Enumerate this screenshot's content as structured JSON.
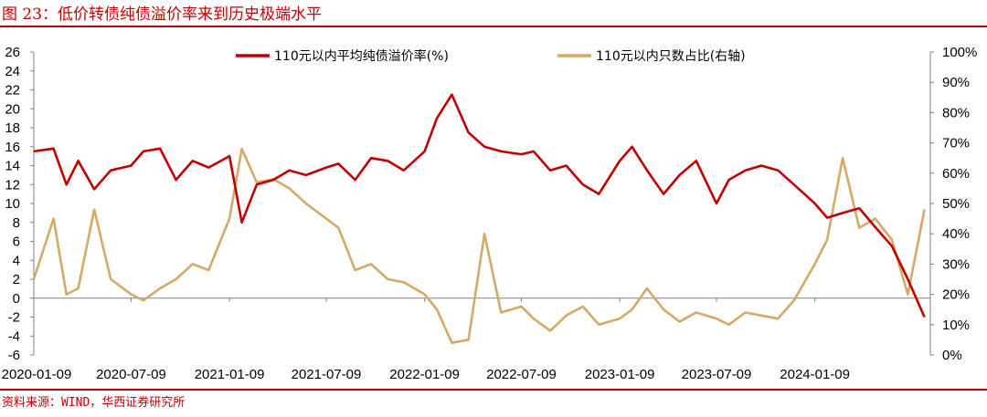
{
  "figure_title": "图 23：低价转债纯债溢价率来到历史极端水平",
  "source_note": "资料来源：WIND，华西证券研究所",
  "colors": {
    "accent": "#c00000",
    "series_left": "#c00000",
    "series_right": "#d4aa66"
  },
  "chart_data": {
    "type": "line",
    "title": "",
    "x_ticks": [
      "2020-01-09",
      "2020-07-09",
      "2021-01-09",
      "2021-07-09",
      "2022-01-09",
      "2022-07-09",
      "2023-01-09",
      "2023-07-09",
      "2024-01-09"
    ],
    "y_left_ticks": [
      "26",
      "24",
      "22",
      "20",
      "18",
      "16",
      "14",
      "12",
      "10",
      "8",
      "6",
      "4",
      "2",
      "0",
      "-2",
      "-4",
      "-6"
    ],
    "y_right_ticks": [
      "100%",
      "90%",
      "80%",
      "70%",
      "60%",
      "50%",
      "40%",
      "30%",
      "20%",
      "10%",
      "0%"
    ],
    "ylim_left": [
      -6,
      26
    ],
    "ylim_right": [
      0,
      100
    ],
    "legend_position": "top",
    "grid": false,
    "series": [
      {
        "name": "110元以内平均纯债溢价率(%)",
        "axis": "left",
        "x": [
          "2020-01-09",
          "2020-02-15",
          "2020-03-10",
          "2020-04-01",
          "2020-05-01",
          "2020-06-01",
          "2020-07-09",
          "2020-08-01",
          "2020-09-01",
          "2020-10-01",
          "2020-11-01",
          "2020-12-01",
          "2021-01-09",
          "2021-02-01",
          "2021-03-01",
          "2021-04-01",
          "2021-05-01",
          "2021-06-01",
          "2021-07-09",
          "2021-08-01",
          "2021-09-01",
          "2021-10-01",
          "2021-11-01",
          "2021-12-01",
          "2022-01-09",
          "2022-02-01",
          "2022-03-01",
          "2022-04-01",
          "2022-05-01",
          "2022-06-01",
          "2022-07-09",
          "2022-08-01",
          "2022-09-01",
          "2022-10-01",
          "2022-11-01",
          "2022-12-01",
          "2023-01-09",
          "2023-02-01",
          "2023-03-01",
          "2023-04-01",
          "2023-05-01",
          "2023-06-01",
          "2023-07-09",
          "2023-08-01",
          "2023-09-01",
          "2023-10-01",
          "2023-11-01",
          "2023-12-01",
          "2024-01-09",
          "2024-02-01",
          "2024-03-01",
          "2024-04-01",
          "2024-05-01",
          "2024-06-01",
          "2024-07-01",
          "2024-08-01"
        ],
        "values": [
          15.5,
          15.8,
          12.0,
          14.5,
          11.5,
          13.5,
          14.0,
          15.5,
          15.8,
          12.5,
          14.5,
          13.8,
          15.0,
          8.0,
          12.0,
          12.5,
          13.5,
          13.0,
          13.8,
          14.2,
          12.5,
          14.8,
          14.5,
          13.5,
          15.5,
          19.0,
          21.5,
          17.5,
          16.0,
          15.5,
          15.2,
          15.5,
          13.5,
          14.0,
          12.0,
          11.0,
          14.5,
          16.0,
          13.5,
          11.0,
          13.0,
          14.5,
          10.0,
          12.5,
          13.5,
          14.0,
          13.5,
          12.0,
          10.0,
          8.5,
          9.0,
          9.5,
          7.5,
          5.5,
          2.0,
          -2.0
        ]
      },
      {
        "name": "110元以内只数占比(右轴)",
        "axis": "right",
        "x": [
          "2020-01-09",
          "2020-02-15",
          "2020-03-10",
          "2020-04-01",
          "2020-05-01",
          "2020-06-01",
          "2020-07-09",
          "2020-08-01",
          "2020-09-01",
          "2020-10-01",
          "2020-11-01",
          "2020-12-01",
          "2021-01-09",
          "2021-02-01",
          "2021-03-01",
          "2021-04-01",
          "2021-05-01",
          "2021-06-01",
          "2021-07-09",
          "2021-08-01",
          "2021-09-01",
          "2021-10-01",
          "2021-11-01",
          "2021-12-01",
          "2022-01-09",
          "2022-02-01",
          "2022-03-01",
          "2022-04-01",
          "2022-05-01",
          "2022-06-01",
          "2022-07-09",
          "2022-08-01",
          "2022-09-01",
          "2022-10-01",
          "2022-11-01",
          "2022-12-01",
          "2023-01-09",
          "2023-02-01",
          "2023-03-01",
          "2023-04-01",
          "2023-05-01",
          "2023-06-01",
          "2023-07-09",
          "2023-08-01",
          "2023-09-01",
          "2023-10-01",
          "2023-11-01",
          "2023-12-01",
          "2024-01-09",
          "2024-02-01",
          "2024-03-01",
          "2024-04-01",
          "2024-05-01",
          "2024-06-01",
          "2024-07-01",
          "2024-08-01"
        ],
        "values": [
          25,
          45,
          20,
          22,
          48,
          25,
          20,
          18,
          22,
          25,
          30,
          28,
          45,
          68,
          57,
          58,
          55,
          50,
          45,
          42,
          28,
          30,
          25,
          24,
          20,
          15,
          4,
          5,
          40,
          14,
          16,
          12,
          8,
          13,
          16,
          10,
          12,
          15,
          22,
          15,
          11,
          14,
          12,
          10,
          14,
          13,
          12,
          18,
          30,
          38,
          65,
          42,
          45,
          38,
          20,
          48
        ]
      }
    ]
  }
}
